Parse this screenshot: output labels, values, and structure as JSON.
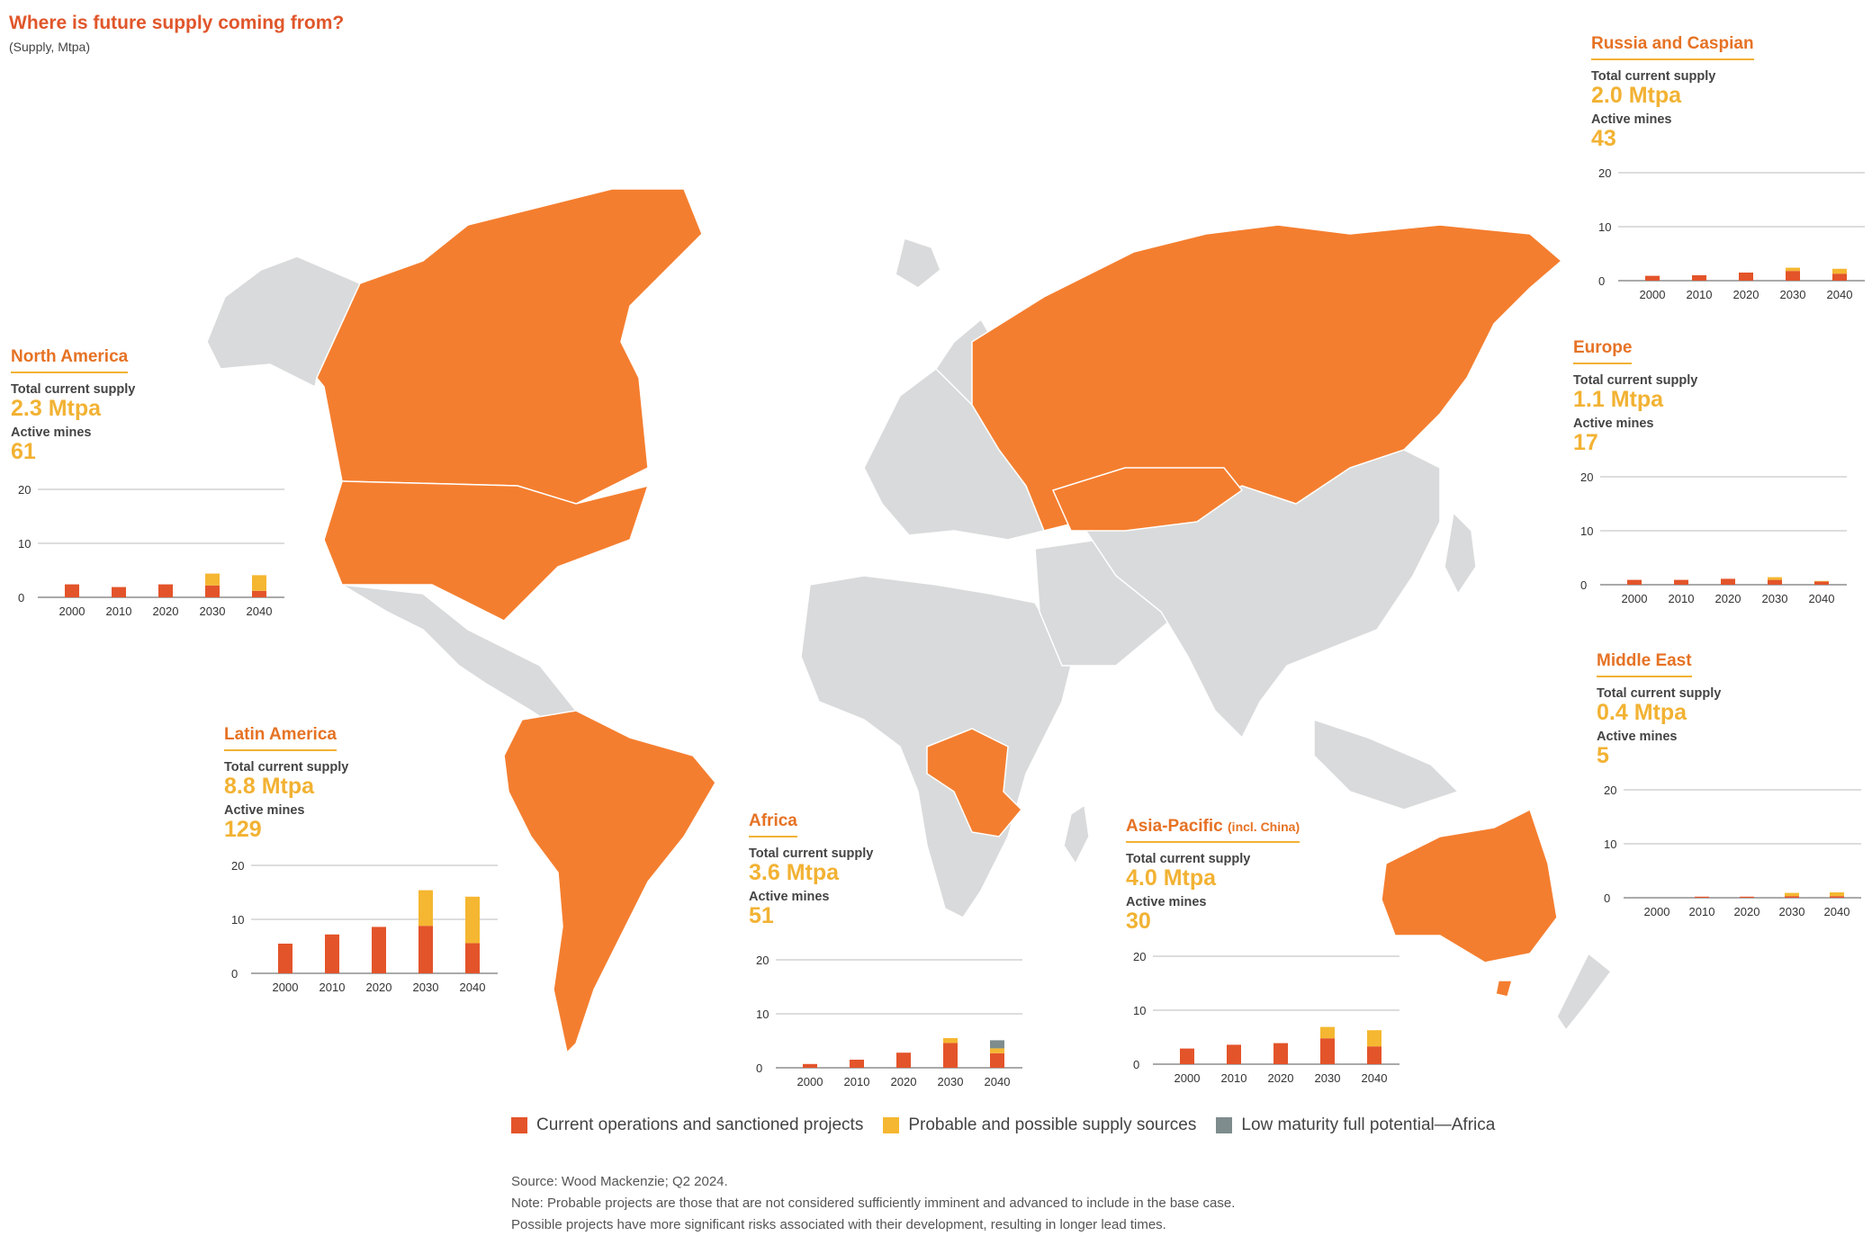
{
  "title": "Where is future supply coming from?",
  "subtitle": "(Supply, Mtpa)",
  "colors": {
    "current": "#e3542a",
    "probable": "#f5b731",
    "low": "#7f8c8d",
    "highlight_land": "#f47e2f",
    "other_land": "#d9dadb"
  },
  "legend": [
    {
      "key": "current",
      "label": "Current operations and sanctioned projects"
    },
    {
      "key": "probable",
      "label": "Probable and possible supply sources"
    },
    {
      "key": "low",
      "label": "Low maturity full potential—Africa"
    }
  ],
  "source": "Source: Wood Mackenzie; Q2 2024.",
  "note1": "Note: Probable projects are those that are not considered sufficiently imminent and advanced to include in the base case.",
  "note2": "Possible projects have more significant risks associated with their development, resulting in longer lead times.",
  "labels": {
    "supply": "Total current supply",
    "mines": "Active mines"
  },
  "regions": {
    "north_america": {
      "name": "North America",
      "supply": "2.3 Mtpa",
      "mines": "61"
    },
    "latin_america": {
      "name": "Latin America",
      "supply": "8.8 Mtpa",
      "mines": "129"
    },
    "africa": {
      "name": "Africa",
      "supply": "3.6 Mtpa",
      "mines": "51"
    },
    "asia_pacific": {
      "name": "Asia-Pacific",
      "name_suffix": "(incl. China)",
      "supply": "4.0 Mtpa",
      "mines": "30"
    },
    "russia_caspian": {
      "name": "Russia and Caspian",
      "supply": "2.0 Mtpa",
      "mines": "43"
    },
    "europe": {
      "name": "Europe",
      "supply": "1.1 Mtpa",
      "mines": "17"
    },
    "middle_east": {
      "name": "Middle East",
      "supply": "0.4 Mtpa",
      "mines": "5"
    }
  },
  "chart_data": [
    {
      "type": "bar",
      "stacked": true,
      "region": "North America",
      "categories": [
        "2000",
        "2010",
        "2020",
        "2030",
        "2040"
      ],
      "ylim": [
        0,
        20
      ],
      "yticks": [
        0,
        10,
        20
      ],
      "series": [
        {
          "key": "current",
          "values": [
            2.4,
            1.9,
            2.4,
            2.2,
            1.2
          ]
        },
        {
          "key": "probable",
          "values": [
            0,
            0,
            0,
            2.2,
            2.9
          ]
        },
        {
          "key": "low",
          "values": [
            0,
            0,
            0,
            0,
            0
          ]
        }
      ]
    },
    {
      "type": "bar",
      "stacked": true,
      "region": "Latin America",
      "categories": [
        "2000",
        "2010",
        "2020",
        "2030",
        "2040"
      ],
      "ylim": [
        0,
        20
      ],
      "yticks": [
        0,
        10,
        20
      ],
      "series": [
        {
          "key": "current",
          "values": [
            5.5,
            7.2,
            8.6,
            8.8,
            5.6
          ]
        },
        {
          "key": "probable",
          "values": [
            0,
            0,
            0,
            6.6,
            8.6
          ]
        },
        {
          "key": "low",
          "values": [
            0,
            0,
            0,
            0,
            0
          ]
        }
      ]
    },
    {
      "type": "bar",
      "stacked": true,
      "region": "Africa",
      "categories": [
        "2000",
        "2010",
        "2020",
        "2030",
        "2040"
      ],
      "ylim": [
        0,
        20
      ],
      "yticks": [
        0,
        10,
        20
      ],
      "series": [
        {
          "key": "current",
          "values": [
            0.7,
            1.5,
            2.8,
            4.6,
            2.7
          ]
        },
        {
          "key": "probable",
          "values": [
            0,
            0,
            0,
            0.9,
            0.9
          ]
        },
        {
          "key": "low",
          "values": [
            0,
            0,
            0,
            0,
            1.5
          ]
        }
      ]
    },
    {
      "type": "bar",
      "stacked": true,
      "region": "Asia-Pacific (incl. China)",
      "categories": [
        "2000",
        "2010",
        "2020",
        "2030",
        "2040"
      ],
      "ylim": [
        0,
        20
      ],
      "yticks": [
        0,
        10,
        20
      ],
      "series": [
        {
          "key": "current",
          "values": [
            2.9,
            3.6,
            3.9,
            4.8,
            3.3
          ]
        },
        {
          "key": "probable",
          "values": [
            0,
            0,
            0,
            2.1,
            3.0
          ]
        },
        {
          "key": "low",
          "values": [
            0,
            0,
            0,
            0,
            0
          ]
        }
      ]
    },
    {
      "type": "bar",
      "stacked": true,
      "region": "Russia and Caspian",
      "categories": [
        "2000",
        "2010",
        "2020",
        "2030",
        "2040"
      ],
      "ylim": [
        0,
        20
      ],
      "yticks": [
        0,
        10,
        20
      ],
      "series": [
        {
          "key": "current",
          "values": [
            0.9,
            1.0,
            1.5,
            1.8,
            1.3
          ]
        },
        {
          "key": "probable",
          "values": [
            0,
            0,
            0,
            0.6,
            0.9
          ]
        },
        {
          "key": "low",
          "values": [
            0,
            0,
            0,
            0,
            0
          ]
        }
      ]
    },
    {
      "type": "bar",
      "stacked": true,
      "region": "Europe",
      "categories": [
        "2000",
        "2010",
        "2020",
        "2030",
        "2040"
      ],
      "ylim": [
        0,
        20
      ],
      "yticks": [
        0,
        10,
        20
      ],
      "series": [
        {
          "key": "current",
          "values": [
            0.9,
            0.9,
            1.1,
            0.9,
            0.6
          ]
        },
        {
          "key": "probable",
          "values": [
            0,
            0,
            0,
            0.5,
            0.1
          ]
        },
        {
          "key": "low",
          "values": [
            0,
            0,
            0,
            0,
            0
          ]
        }
      ]
    },
    {
      "type": "bar",
      "stacked": true,
      "region": "Middle East",
      "categories": [
        "2000",
        "2010",
        "2020",
        "2030",
        "2040"
      ],
      "ylim": [
        0,
        20
      ],
      "yticks": [
        0,
        10,
        20
      ],
      "series": [
        {
          "key": "current",
          "values": [
            0,
            0.2,
            0.2,
            0.3,
            0.3
          ]
        },
        {
          "key": "probable",
          "values": [
            0,
            0,
            0,
            0.6,
            0.7
          ]
        },
        {
          "key": "low",
          "values": [
            0,
            0,
            0,
            0,
            0
          ]
        }
      ]
    }
  ]
}
